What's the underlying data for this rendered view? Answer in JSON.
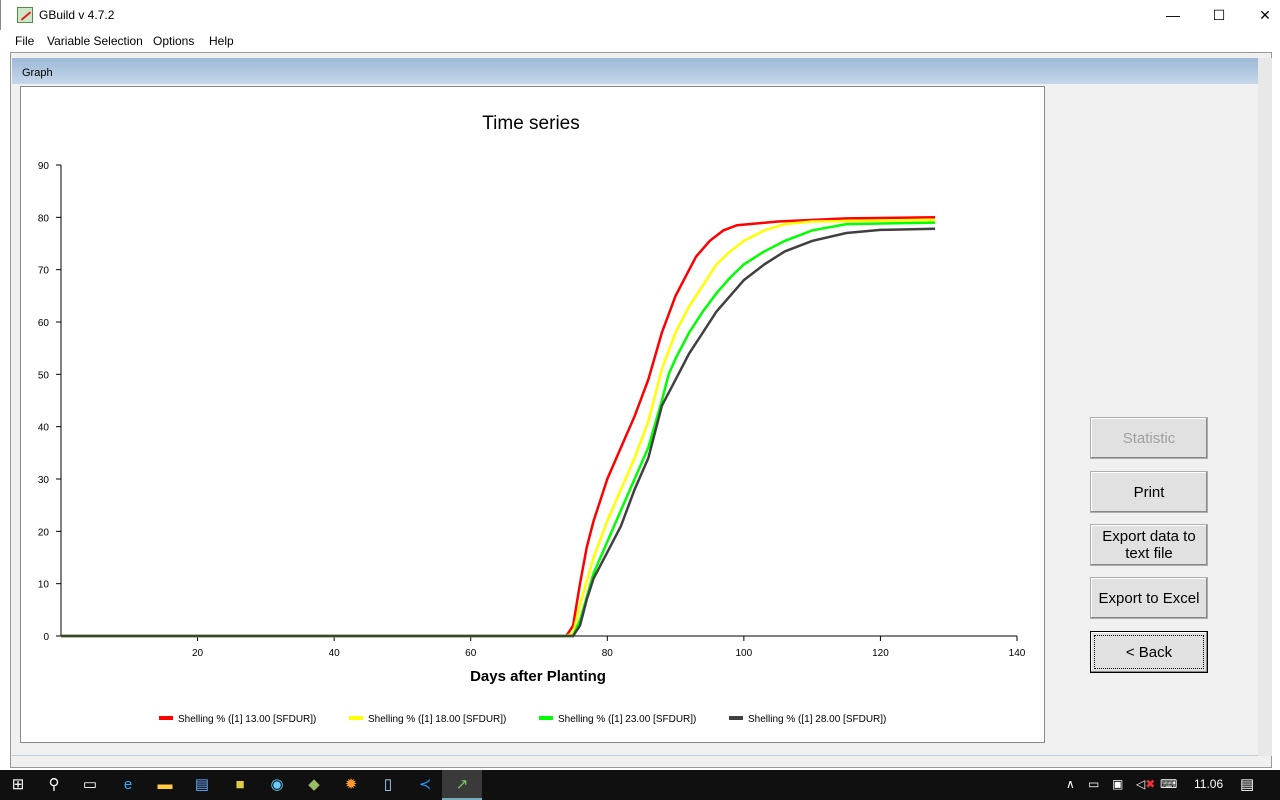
{
  "window": {
    "title": "GBuild v 4.7.2",
    "minimize": "—",
    "maximize": "☐",
    "close": "✕"
  },
  "menu": [
    "File",
    "Variable Selection",
    "Options",
    "Help"
  ],
  "graph_label": "Graph",
  "buttons": {
    "statistic": "Statistic",
    "print": "Print",
    "export_text": "Export data to text file",
    "export_excel": "Export to Excel",
    "back": "< Back"
  },
  "taskbar": {
    "time": "11.06",
    "icons": [
      "windows-start-icon",
      "search-icon",
      "task-view-icon",
      "internet-explorer-icon",
      "file-explorer-icon",
      "app-icon",
      "package-icon",
      "magnifier-icon",
      "tool-icon",
      "fire-icon",
      "notepad-icon",
      "vscode-icon",
      "gbuild-icon"
    ]
  },
  "chart_data": {
    "type": "line",
    "title": "Time series",
    "xlabel": "Days after Planting",
    "ylabel": "",
    "xlim": [
      0,
      140
    ],
    "ylim": [
      0,
      90
    ],
    "xticks": [
      20,
      40,
      60,
      80,
      100,
      120,
      140
    ],
    "yticks": [
      0,
      10,
      20,
      30,
      40,
      50,
      60,
      70,
      80,
      90
    ],
    "grid": false,
    "legend": "bottom",
    "series": [
      {
        "name": "Shelling % ([1]  13.00 [SFDUR])",
        "color": "#ff0000",
        "x": [
          0,
          74,
          75,
          76,
          77,
          78,
          79,
          80,
          82,
          84,
          86,
          88,
          90,
          92,
          93,
          95,
          97,
          99,
          105,
          115,
          128
        ],
        "y": [
          0,
          0,
          2,
          10,
          17,
          22,
          26,
          30,
          36,
          42,
          49,
          58,
          65,
          70,
          72.5,
          75.5,
          77.5,
          78.5,
          79.2,
          79.8,
          80
        ]
      },
      {
        "name": "Shelling % ([1]  18.00 [SFDUR])",
        "color": "#ffff00",
        "x": [
          0,
          74,
          75,
          76,
          78,
          80,
          82,
          84,
          86,
          88,
          90,
          92,
          94,
          96,
          98,
          100,
          103,
          106,
          110,
          128
        ],
        "y": [
          0,
          0,
          0.5,
          6,
          15,
          22,
          28,
          34,
          41,
          51,
          58,
          63,
          67,
          71,
          73.5,
          75.5,
          77.5,
          78.7,
          79.2,
          79.5
        ]
      },
      {
        "name": "Shelling % ([1]  23.00 [SFDUR])",
        "color": "#00ff00",
        "x": [
          0,
          74,
          75,
          76,
          78,
          80,
          82,
          84,
          86,
          88,
          89,
          90,
          92,
          94,
          96,
          98,
          100,
          103,
          106,
          110,
          115,
          128
        ],
        "y": [
          0,
          0,
          0,
          3,
          12,
          18,
          24,
          30,
          36,
          45,
          50,
          53,
          58,
          62,
          65.5,
          68.5,
          71,
          73.5,
          75.5,
          77.5,
          78.7,
          79
        ]
      },
      {
        "name": "Shelling % ([1]  28.00 [SFDUR])",
        "color": "#404040",
        "x": [
          0,
          74,
          75,
          76,
          77,
          78,
          80,
          82,
          84,
          86,
          88,
          90,
          92,
          94,
          96,
          98,
          100,
          103,
          106,
          110,
          115,
          120,
          128
        ],
        "y": [
          0,
          0,
          0,
          2,
          7,
          11,
          16,
          21,
          28,
          34,
          44,
          49,
          54,
          58,
          62,
          65,
          68,
          71,
          73.5,
          75.5,
          77,
          77.6,
          77.8
        ]
      }
    ]
  }
}
